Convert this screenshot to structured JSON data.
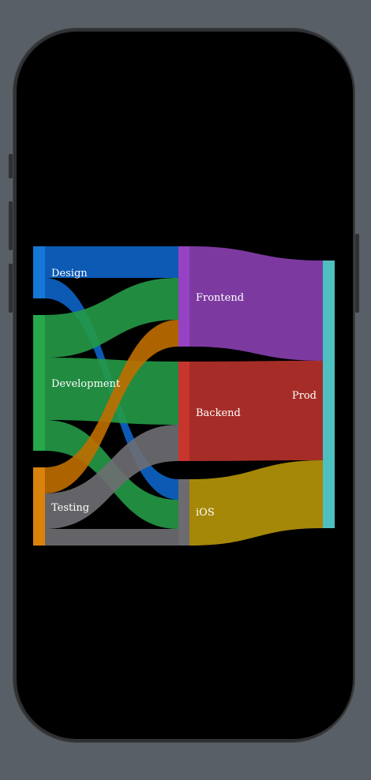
{
  "diagram": {
    "type": "sankey",
    "nodes": [
      {
        "id": "design",
        "label": "Design",
        "color": "#1577d6"
      },
      {
        "id": "development",
        "label": "Development",
        "color": "#27a84b"
      },
      {
        "id": "testing",
        "label": "Testing",
        "color": "#d9820c"
      },
      {
        "id": "frontend",
        "label": "Frontend",
        "color": "#9642c4"
      },
      {
        "id": "backend",
        "label": "Backend",
        "color": "#c8352d"
      },
      {
        "id": "ios",
        "label": "iOS",
        "color": "#6b6b70"
      },
      {
        "id": "prod",
        "label": "Prod",
        "color": "#4ec0c0"
      }
    ],
    "links": [
      {
        "source": "design",
        "target": "frontend",
        "value": 1,
        "color": "#0d64c8"
      },
      {
        "source": "design",
        "target": "ios",
        "value": 1,
        "color": "#0d64c8"
      },
      {
        "source": "development",
        "target": "frontend",
        "value": 1,
        "color": "#259a47"
      },
      {
        "source": "development",
        "target": "backend",
        "value": 2,
        "color": "#259a47"
      },
      {
        "source": "development",
        "target": "ios",
        "value": 1,
        "color": "#259a47"
      },
      {
        "source": "testing",
        "target": "frontend",
        "value": 1,
        "color": "#bf6e00"
      },
      {
        "source": "testing",
        "target": "backend",
        "value": 1,
        "color": "#6e6e73"
      },
      {
        "source": "testing",
        "target": "ios",
        "value": 0.5,
        "color": "#6e6e73"
      },
      {
        "source": "frontend",
        "target": "prod",
        "value": 3,
        "color": "#8a40b2"
      },
      {
        "source": "backend",
        "target": "prod",
        "value": 3,
        "color": "#b8322b"
      },
      {
        "source": "ios",
        "target": "prod",
        "value": 2.5,
        "color": "#b8970a"
      }
    ]
  }
}
